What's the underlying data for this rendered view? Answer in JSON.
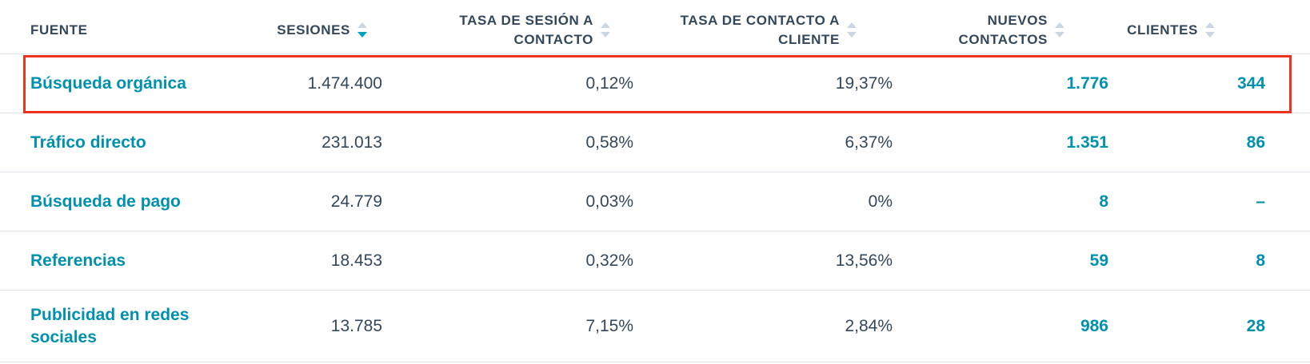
{
  "columns": {
    "source": "FUENTE",
    "sessions": "SESIONES",
    "session_to_contact_1": "TASA DE SESIÓN A",
    "session_to_contact_2": "CONTACTO",
    "contact_to_customer_1": "TASA DE CONTACTO A",
    "contact_to_customer_2": "CLIENTE",
    "new_contacts_1": "NUEVOS",
    "new_contacts_2": "CONTACTOS",
    "customers": "CLIENTES"
  },
  "rows": [
    {
      "source": "Búsqueda orgánica",
      "sessions": "1.474.400",
      "session_rate": "0,12%",
      "contact_rate": "19,37%",
      "new_contacts": "1.776",
      "customers": "344"
    },
    {
      "source": "Tráfico directo",
      "sessions": "231.013",
      "session_rate": "0,58%",
      "contact_rate": "6,37%",
      "new_contacts": "1.351",
      "customers": "86"
    },
    {
      "source": "Búsqueda de pago",
      "sessions": "24.779",
      "session_rate": "0,03%",
      "contact_rate": "0%",
      "new_contacts": "8",
      "customers": "–"
    },
    {
      "source": "Referencias",
      "sessions": "18.453",
      "session_rate": "0,32%",
      "contact_rate": "13,56%",
      "new_contacts": "59",
      "customers": "8"
    },
    {
      "source": "Publicidad en redes sociales",
      "sessions": "13.785",
      "session_rate": "7,15%",
      "contact_rate": "2,84%",
      "new_contacts": "986",
      "customers": "28"
    }
  ],
  "sort": {
    "column": "sessions",
    "direction": "descending"
  },
  "colors": {
    "link": "#0091ae",
    "text": "#33475b",
    "highlight": "#f0311e",
    "sort_active": "#00a4bd"
  }
}
